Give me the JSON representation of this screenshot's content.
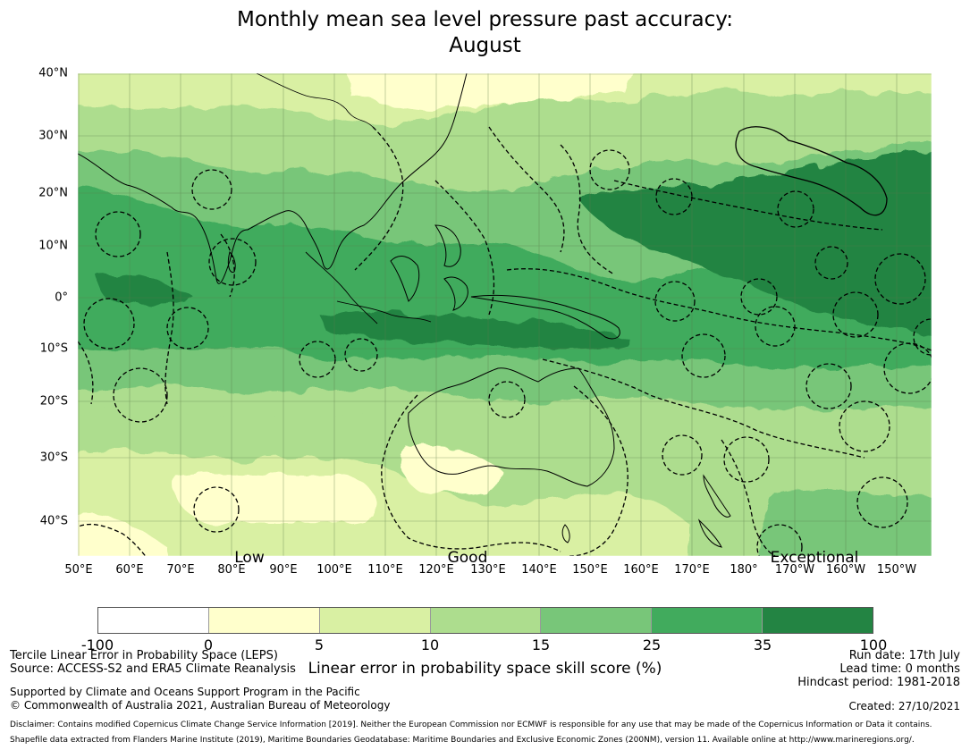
{
  "title_line1": "Monthly mean sea level pressure past accuracy:",
  "title_line2": "August",
  "lat_labels": [
    "40°N",
    "30°N",
    "20°N",
    "10°N",
    "0°",
    "10°S",
    "20°S",
    "30°S",
    "40°S"
  ],
  "lon_labels": [
    "50°E",
    "60°E",
    "70°E",
    "80°E",
    "90°E",
    "100°E",
    "110°E",
    "120°E",
    "130°E",
    "140°E",
    "150°E",
    "160°E",
    "170°E",
    "180°",
    "170°W",
    "160°W",
    "150°W"
  ],
  "categories": [
    "Low",
    "Good",
    "Exceptional"
  ],
  "colorbar": {
    "ticks": [
      "-100",
      "0",
      "5",
      "10",
      "15",
      "25",
      "35",
      "100"
    ],
    "colors": [
      "#ffffff",
      "#ffffcc",
      "#d9f0a3",
      "#addd8e",
      "#78c679",
      "#41ab5d",
      "#238443"
    ],
    "label": "Linear error in probability space skill score (%)"
  },
  "footer": {
    "method": "Tercile Linear Error in Probability Space (LEPS)",
    "source": "Source: ACCESS-S2 and ERA5 Climate Reanalysis",
    "run_date": "Run date: 17th July",
    "lead_time": "Lead time: 0 months",
    "hindcast": "Hindcast period: 1981-2018",
    "supported": "Supported by Climate and Oceans Support Program in the Pacific",
    "copyright": "© Commonwealth of Australia 2021, Australian Bureau of Meteorology",
    "created": "Created: 27/10/2021",
    "disclaimer": "Disclaimer: Contains modified Copernicus Climate Change Service Information [2019]. Neither the European Commission nor ECMWF is responsible for any use that may be made of the Copernicus Information or Data it contains.",
    "shapefile": "Shapefile data extracted from Flanders Marine Institute (2019), Maritime Boundaries Geodatabase: Maritime Boundaries and Exclusive Economic Zones (200NM), version 11. Available online at http://www.marineregions.org/."
  }
}
